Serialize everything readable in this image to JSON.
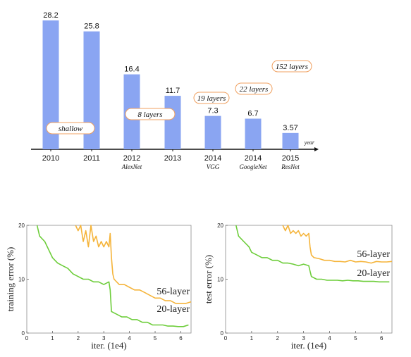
{
  "colors": {
    "bar": "#8aa5f2",
    "badge_border": "#f0a060",
    "yellow": "#f5b43a",
    "green": "#6dcd3a"
  },
  "chart_data": [
    {
      "type": "bar",
      "title": "",
      "xlabel": "year",
      "ylabel": "",
      "ylim": [
        0,
        30
      ],
      "categories": [
        "2010",
        "2011",
        "2012",
        "2013",
        "2014",
        "2014",
        "2015"
      ],
      "subtitles": [
        "",
        "",
        "AlexNet",
        "",
        "VGG",
        "GoogleNet",
        "ResNet"
      ],
      "values": [
        28.2,
        25.8,
        16.4,
        11.7,
        7.3,
        6.7,
        3.57
      ],
      "value_labels": [
        "28.2",
        "25.8",
        "16.4",
        "11.7",
        "7.3",
        "6.7",
        "3.57"
      ],
      "annotations": [
        "shallow",
        "8 layers",
        "19 layers",
        "22 layers",
        "152 layers"
      ]
    },
    {
      "type": "line",
      "title": "",
      "xlabel": "iter. (1e4)",
      "ylabel": "training error (%)",
      "xlim": [
        0,
        6.4
      ],
      "ylim": [
        0,
        20
      ],
      "xticks": [
        0,
        1,
        2,
        3,
        4,
        5,
        6
      ],
      "yticks": [
        0,
        10,
        20
      ],
      "series": [
        {
          "name": "56-layer",
          "x": [
            1.9,
            2.0,
            2.1,
            2.2,
            2.3,
            2.4,
            2.5,
            2.6,
            2.7,
            2.8,
            2.9,
            3.0,
            3.1,
            3.2,
            3.25,
            3.3,
            3.35,
            3.4,
            3.6,
            3.8,
            4.0,
            4.2,
            4.4,
            4.6,
            4.8,
            5.0,
            5.2,
            5.4,
            5.6,
            5.8,
            6.0,
            6.2,
            6.4
          ],
          "y": [
            20,
            19,
            20,
            17,
            19,
            16,
            20,
            17,
            18,
            16,
            17,
            16,
            17,
            16,
            18.5,
            14,
            11,
            10,
            9,
            9,
            8.5,
            8,
            8,
            7.5,
            7,
            6.5,
            6.5,
            6,
            6,
            5.5,
            5.5,
            5.5,
            5.8
          ]
        },
        {
          "name": "20-layer",
          "x": [
            0.4,
            0.5,
            0.7,
            0.9,
            1.0,
            1.2,
            1.4,
            1.6,
            1.8,
            2.0,
            2.2,
            2.4,
            2.6,
            2.8,
            3.0,
            3.2,
            3.25,
            3.3,
            3.5,
            3.7,
            3.9,
            4.1,
            4.3,
            4.5,
            4.7,
            4.9,
            5.1,
            5.3,
            5.5,
            5.7,
            5.9,
            6.1,
            6.3
          ],
          "y": [
            20,
            18,
            17,
            15,
            14,
            13,
            12.5,
            12,
            11,
            10.5,
            10,
            10,
            9.5,
            9.5,
            9,
            9.5,
            8,
            4,
            3.5,
            3,
            3,
            2.5,
            2.5,
            2,
            2,
            1.5,
            1.5,
            1.5,
            1.3,
            1.3,
            1.2,
            1.2,
            1.5
          ]
        }
      ]
    },
    {
      "type": "line",
      "title": "",
      "xlabel": "iter. (1e4)",
      "ylabel": "test error (%)",
      "xlim": [
        0,
        6.4
      ],
      "ylim": [
        0,
        20
      ],
      "xticks": [
        0,
        1,
        2,
        3,
        4,
        5,
        6
      ],
      "yticks": [
        0,
        10,
        20
      ],
      "series": [
        {
          "name": "56-layer",
          "x": [
            2.2,
            2.3,
            2.4,
            2.5,
            2.6,
            2.7,
            2.8,
            2.9,
            3.0,
            3.1,
            3.2,
            3.25,
            3.3,
            3.4,
            3.6,
            3.8,
            4.0,
            4.2,
            4.4,
            4.6,
            4.8,
            5.0,
            5.2,
            5.4,
            5.6,
            5.8,
            6.0,
            6.2,
            6.4
          ],
          "y": [
            20,
            19,
            20,
            18.5,
            19,
            18.5,
            19,
            18,
            18.5,
            18,
            18.5,
            16,
            14.5,
            14,
            13.8,
            13.5,
            13.5,
            13.3,
            13.3,
            13.2,
            13.5,
            13.2,
            13.3,
            13.2,
            13,
            13.3,
            13.2,
            13.2,
            13.3
          ]
        },
        {
          "name": "20-layer",
          "x": [
            0.4,
            0.5,
            0.7,
            0.9,
            1.0,
            1.2,
            1.4,
            1.6,
            1.8,
            2.0,
            2.2,
            2.4,
            2.6,
            2.8,
            3.0,
            3.2,
            3.25,
            3.3,
            3.5,
            3.7,
            3.9,
            4.1,
            4.3,
            4.5,
            4.7,
            4.9,
            5.1,
            5.3,
            5.5,
            5.7,
            5.9,
            6.1,
            6.3
          ],
          "y": [
            20,
            18,
            17,
            16,
            15,
            14.5,
            14,
            14,
            13.5,
            13.5,
            13,
            13,
            12.8,
            12.5,
            12.8,
            12.5,
            11.5,
            10.5,
            10,
            10,
            9.8,
            9.8,
            9.8,
            9.7,
            9.8,
            9.7,
            9.7,
            9.6,
            9.6,
            9.6,
            9.5,
            9.5,
            9.5
          ]
        }
      ]
    }
  ]
}
